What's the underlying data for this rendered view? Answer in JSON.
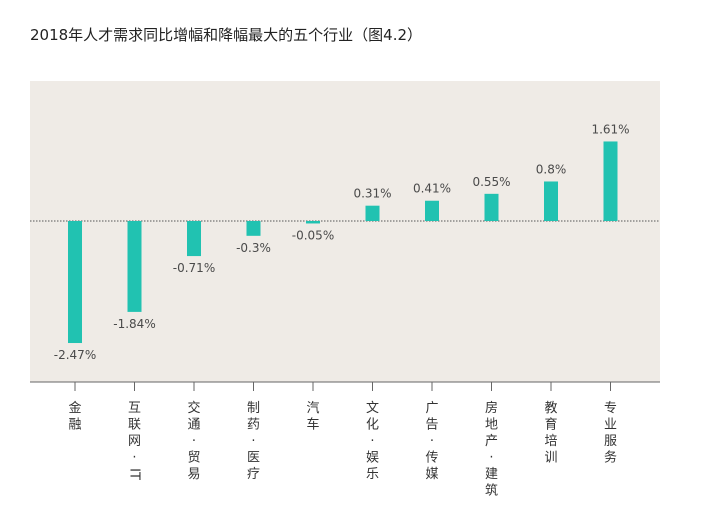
{
  "title": "2018年人才需求同比增幅和降幅最大的五个行业（图4.2）",
  "colors": {
    "bar": "#21c2b1",
    "plot_background": "#efebe6",
    "zero_line": "#555555"
  },
  "chart_data": {
    "type": "bar",
    "title": "2018年人才需求同比增幅和降幅最大的五个行业（图4.2）",
    "xlabel": "",
    "ylabel": "",
    "unit": "%",
    "grid": false,
    "ylim": [
      -2.7,
      1.8
    ],
    "categories": [
      "金融",
      "互联网·IT",
      "交通·贸易",
      "制药·医疗",
      "汽车",
      "文化·娱乐",
      "广告·传媒",
      "房地产·建筑",
      "教育培训",
      "专业服务"
    ],
    "category_chars": [
      [
        "金",
        "融"
      ],
      [
        "互",
        "联",
        "网",
        "·",
        "IT"
      ],
      [
        "交",
        "通",
        "·",
        "贸",
        "易"
      ],
      [
        "制",
        "药",
        "·",
        "医",
        "疗"
      ],
      [
        "汽",
        "车"
      ],
      [
        "文",
        "化",
        "·",
        "娱",
        "乐"
      ],
      [
        "广",
        "告",
        "·",
        "传",
        "媒"
      ],
      [
        "房",
        "地",
        "产",
        "·",
        "建",
        "筑"
      ],
      [
        "教",
        "育",
        "培",
        "训"
      ],
      [
        "专",
        "业",
        "服",
        "务"
      ]
    ],
    "values": [
      -2.47,
      -1.84,
      -0.71,
      -0.3,
      -0.05,
      0.31,
      0.41,
      0.55,
      0.8,
      1.61
    ],
    "labels": [
      "-2.47%",
      "-1.84%",
      "-0.71%",
      "-0.3%",
      "-0.05%",
      "0.31%",
      "0.41%",
      "0.55%",
      "0.8%",
      "1.61%"
    ]
  }
}
